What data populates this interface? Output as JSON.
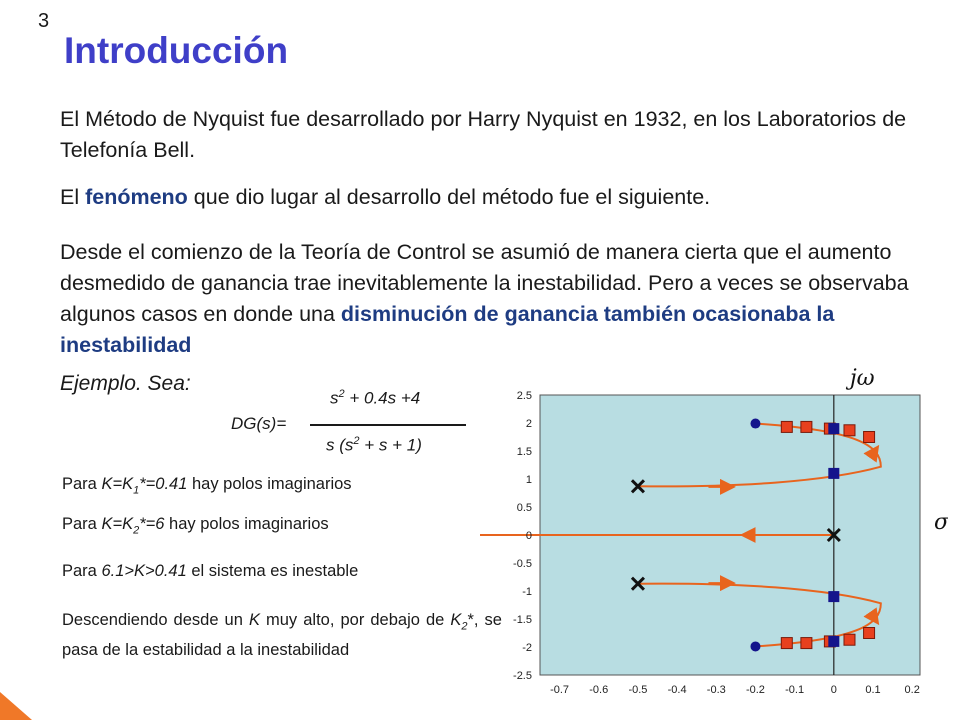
{
  "slide_number": "3",
  "title": "Introducción",
  "paragraphs": {
    "p1": "El Método de Nyquist fue desarrollado por Harry Nyquist en 1932, en los Laboratorios de Telefonía Bell.",
    "p2_a": "El ",
    "p2_b": "fenómeno",
    "p2_c": " que dio lugar al desarrollo del método fue el siguiente.",
    "p3_a": "Desde el comienzo de la Teoría de Control se asumió de manera cierta que el aumento desmedido de ganancia trae inevitablemente la inestabilidad. Pero a veces se observaba algunos casos en donde una ",
    "p3_b": "disminución de ganancia también ocasionaba la inestabilidad"
  },
  "example": {
    "label": "Ejemplo. Sea:",
    "dg_label": "DG(s)=",
    "num_a": "s",
    "num_sup": "2",
    "num_b": " + 0.4s +4",
    "den_a": "s (s",
    "den_sup": "2",
    "den_b": " + s + 1)"
  },
  "notes": {
    "n1_a": "Para ",
    "n1_b": "K=K",
    "n1_sub": "1",
    "n1_c": "*=0.41",
    "n1_d": " hay polos imaginarios",
    "n2_a": "Para ",
    "n2_b": "K=K",
    "n2_sub": "2",
    "n2_c": "*=6",
    "n2_d": " hay polos imaginarios",
    "n3_a": "Para ",
    "n3_b": "6.1>K>0.41",
    "n3_c": " el sistema es inestable",
    "desc_a": "Descendiendo desde un ",
    "desc_b": "K",
    "desc_c": " muy alto, por debajo de ",
    "desc_d": "K",
    "desc_sub": "2",
    "desc_e": "*, se pasa de la estabilidad a la inestabilidad"
  },
  "colors": {
    "plot_bg": "#b8dde2",
    "accent": "#3f3fc8",
    "highlight": "#1e3c82",
    "locus": "#e8641e",
    "closed_pole": "#14148c",
    "marker": "#e8401e"
  },
  "chart_data": {
    "type": "scatter",
    "title": "",
    "xlabel": "σ",
    "ylabel": "jω",
    "xlim": [
      -0.75,
      0.22
    ],
    "ylim": [
      -2.5,
      2.5
    ],
    "x_ticks": [
      "-0.7",
      "-0.6",
      "-0.5",
      "-0.4",
      "-0.3",
      "-0.2",
      "-0.1",
      "0",
      "0.1",
      "0.2"
    ],
    "y_ticks": [
      "2.5",
      "2",
      "1.5",
      "1",
      "0.5",
      "0",
      "-0.5",
      "-1",
      "-1.5",
      "-2",
      "-2.5"
    ],
    "open_loop_poles": [
      {
        "x": -0.5,
        "y": 0.87
      },
      {
        "x": -0.5,
        "y": -0.87
      },
      {
        "x": 0.0,
        "y": 0.0
      }
    ],
    "open_loop_zeros": [
      {
        "x": -0.2,
        "y": 1.99
      },
      {
        "x": -0.2,
        "y": -1.99
      }
    ],
    "closed_loop_poles": [
      {
        "x": 0.0,
        "y": 1.9
      },
      {
        "x": 0.0,
        "y": 1.1
      },
      {
        "x": 0.0,
        "y": -1.1
      },
      {
        "x": 0.0,
        "y": -1.9
      }
    ],
    "locus_points": [
      {
        "x": -0.12,
        "y": 1.93
      },
      {
        "x": -0.07,
        "y": 1.93
      },
      {
        "x": -0.01,
        "y": 1.9
      },
      {
        "x": 0.04,
        "y": 1.87
      },
      {
        "x": 0.09,
        "y": 1.75
      },
      {
        "x": -0.12,
        "y": -1.93
      },
      {
        "x": -0.07,
        "y": -1.93
      },
      {
        "x": -0.01,
        "y": -1.9
      },
      {
        "x": 0.04,
        "y": -1.87
      },
      {
        "x": 0.09,
        "y": -1.75
      }
    ]
  }
}
